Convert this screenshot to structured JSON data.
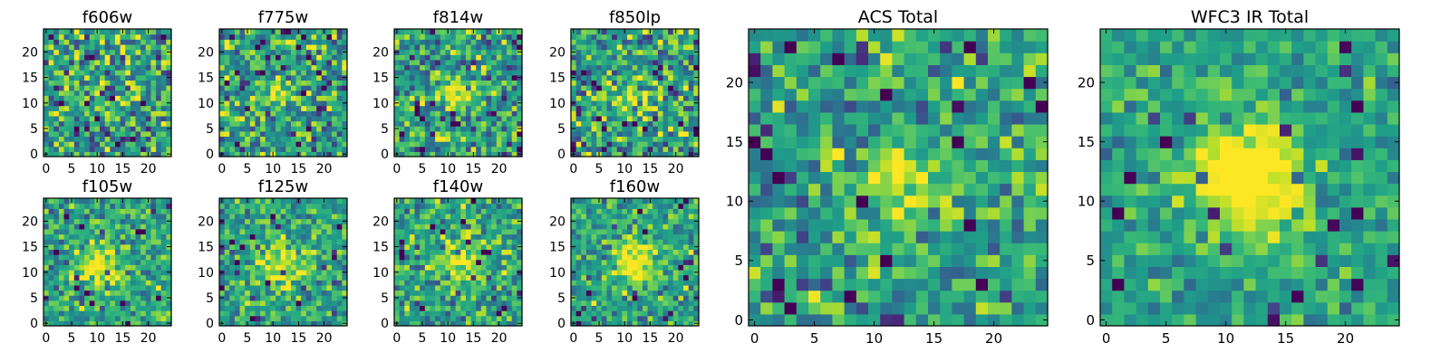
{
  "chart_data": [
    {
      "type": "heatmap",
      "title": "f606w",
      "colormap": "viridis",
      "grid_size": [
        25,
        25
      ],
      "xlim": [
        0,
        25
      ],
      "ylim": [
        0,
        25
      ],
      "xticks": [
        0,
        5,
        10,
        15,
        20
      ],
      "yticks": [
        0,
        5,
        10,
        15,
        20
      ],
      "source_center": [
        12,
        12
      ],
      "source_strength": 0.0,
      "source_sigma": 2.5,
      "noise": 0.4,
      "seed": 11
    },
    {
      "type": "heatmap",
      "title": "f775w",
      "colormap": "viridis",
      "grid_size": [
        25,
        25
      ],
      "xlim": [
        0,
        25
      ],
      "ylim": [
        0,
        25
      ],
      "xticks": [
        0,
        5,
        10,
        15,
        20
      ],
      "yticks": [
        0,
        5,
        10,
        15,
        20
      ],
      "source_center": [
        11.5,
        12
      ],
      "source_strength": 0.55,
      "source_sigma": 1.8,
      "noise": 0.38,
      "seed": 23
    },
    {
      "type": "heatmap",
      "title": "f814w",
      "colormap": "viridis",
      "grid_size": [
        25,
        25
      ],
      "xlim": [
        0,
        25
      ],
      "ylim": [
        0,
        25
      ],
      "xticks": [
        0,
        5,
        10,
        15,
        20
      ],
      "yticks": [
        0,
        5,
        10,
        15,
        20
      ],
      "source_center": [
        11.5,
        12
      ],
      "source_strength": 0.5,
      "source_sigma": 2.0,
      "noise": 0.38,
      "seed": 37
    },
    {
      "type": "heatmap",
      "title": "f850lp",
      "colormap": "viridis",
      "grid_size": [
        25,
        25
      ],
      "xlim": [
        0,
        25
      ],
      "ylim": [
        0,
        25
      ],
      "xticks": [
        0,
        5,
        10,
        15,
        20
      ],
      "yticks": [
        0,
        5,
        10,
        15,
        20
      ],
      "source_center": [
        11.5,
        11.5
      ],
      "source_strength": 0.4,
      "source_sigma": 2.0,
      "noise": 0.4,
      "seed": 53
    },
    {
      "type": "heatmap",
      "title": "f105w",
      "colormap": "viridis",
      "grid_size": [
        25,
        25
      ],
      "xlim": [
        0,
        25
      ],
      "ylim": [
        0,
        25
      ],
      "xticks": [
        0,
        5,
        10,
        15,
        20
      ],
      "yticks": [
        0,
        5,
        10,
        15,
        20
      ],
      "source_center": [
        11,
        11
      ],
      "source_strength": 0.55,
      "source_sigma": 3.0,
      "noise": 0.3,
      "seed": 67
    },
    {
      "type": "heatmap",
      "title": "f125w",
      "colormap": "viridis",
      "grid_size": [
        25,
        25
      ],
      "xlim": [
        0,
        25
      ],
      "ylim": [
        0,
        25
      ],
      "xticks": [
        0,
        5,
        10,
        15,
        20
      ],
      "yticks": [
        0,
        5,
        10,
        15,
        20
      ],
      "source_center": [
        12,
        12
      ],
      "source_strength": 0.55,
      "source_sigma": 3.0,
      "noise": 0.3,
      "seed": 79
    },
    {
      "type": "heatmap",
      "title": "f140w",
      "colormap": "viridis",
      "grid_size": [
        25,
        25
      ],
      "xlim": [
        0,
        25
      ],
      "ylim": [
        0,
        25
      ],
      "xticks": [
        0,
        5,
        10,
        15,
        20
      ],
      "yticks": [
        0,
        5,
        10,
        15,
        20
      ],
      "source_center": [
        12.5,
        12
      ],
      "source_strength": 0.6,
      "source_sigma": 3.2,
      "noise": 0.32,
      "seed": 97
    },
    {
      "type": "heatmap",
      "title": "f160w",
      "colormap": "viridis",
      "grid_size": [
        25,
        25
      ],
      "xlim": [
        0,
        25
      ],
      "ylim": [
        0,
        25
      ],
      "xticks": [
        0,
        5,
        10,
        15,
        20
      ],
      "yticks": [
        0,
        5,
        10,
        15,
        20
      ],
      "source_center": [
        12,
        12
      ],
      "source_strength": 0.7,
      "source_sigma": 3.0,
      "noise": 0.28,
      "seed": 103
    },
    {
      "type": "heatmap",
      "title": "ACS Total",
      "colormap": "viridis",
      "grid_size": [
        25,
        25
      ],
      "xlim": [
        0,
        25
      ],
      "ylim": [
        0,
        25
      ],
      "xticks": [
        0,
        5,
        10,
        15,
        20
      ],
      "yticks": [
        0,
        5,
        10,
        15,
        20
      ],
      "source_center": [
        12,
        11.5
      ],
      "source_strength": 0.6,
      "source_sigma": 2.2,
      "noise": 0.32,
      "seed": 131
    },
    {
      "type": "heatmap",
      "title": "WFC3 IR Total",
      "colormap": "viridis",
      "grid_size": [
        25,
        25
      ],
      "xlim": [
        0,
        25
      ],
      "ylim": [
        0,
        25
      ],
      "xticks": [
        0,
        5,
        10,
        15,
        20
      ],
      "yticks": [
        0,
        5,
        10,
        15,
        20
      ],
      "source_center": [
        12,
        12
      ],
      "source_strength": 0.9,
      "source_sigma": 3.2,
      "noise": 0.22,
      "seed": 149
    }
  ]
}
